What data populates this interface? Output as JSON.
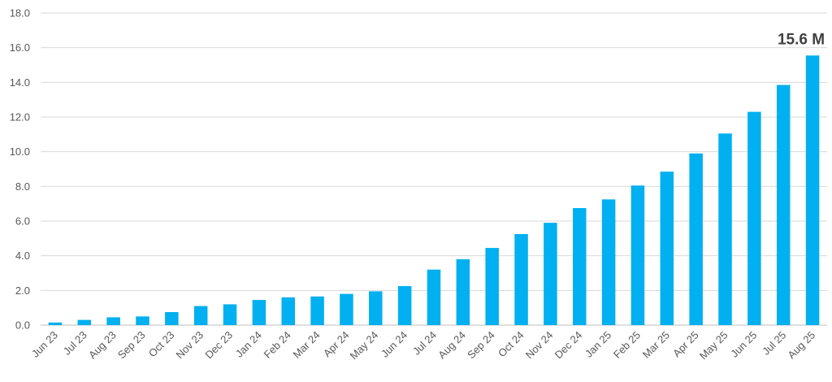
{
  "chart_data": {
    "type": "bar",
    "title": "",
    "xlabel": "",
    "ylabel": "",
    "categories": [
      "Jun 23",
      "Jul 23",
      "Aug 23",
      "Sep 23",
      "Oct 23",
      "Nov 23",
      "Dec 23",
      "Jan 24",
      "Feb 24",
      "Mar 24",
      "Apr 24",
      "May 24",
      "Jun 24",
      "Jul 24",
      "Aug 24",
      "Sep 24",
      "Oct 24",
      "Nov 24",
      "Dec 24",
      "Jan 25",
      "Feb 25",
      "Mar 25",
      "Apr 25",
      "May 25",
      "Jun 25",
      "Jul 25",
      "Aug 25"
    ],
    "values": [
      0.15,
      0.3,
      0.45,
      0.5,
      0.75,
      1.1,
      1.2,
      1.45,
      1.6,
      1.65,
      1.8,
      1.95,
      2.25,
      3.2,
      3.8,
      4.45,
      5.25,
      5.9,
      6.75,
      7.25,
      8.05,
      8.85,
      9.9,
      11.05,
      12.3,
      13.85,
      15.55
    ],
    "ylim": [
      0,
      18
    ],
    "yticks": [
      "0.0",
      "2.0",
      "4.0",
      "6.0",
      "8.0",
      "10.0",
      "12.0",
      "14.0",
      "16.0",
      "18.0"
    ],
    "grid": true,
    "bar_color": "#00b0f0",
    "data_labels": [
      {
        "category": "Aug 25",
        "text": "15.6 M"
      }
    ]
  }
}
